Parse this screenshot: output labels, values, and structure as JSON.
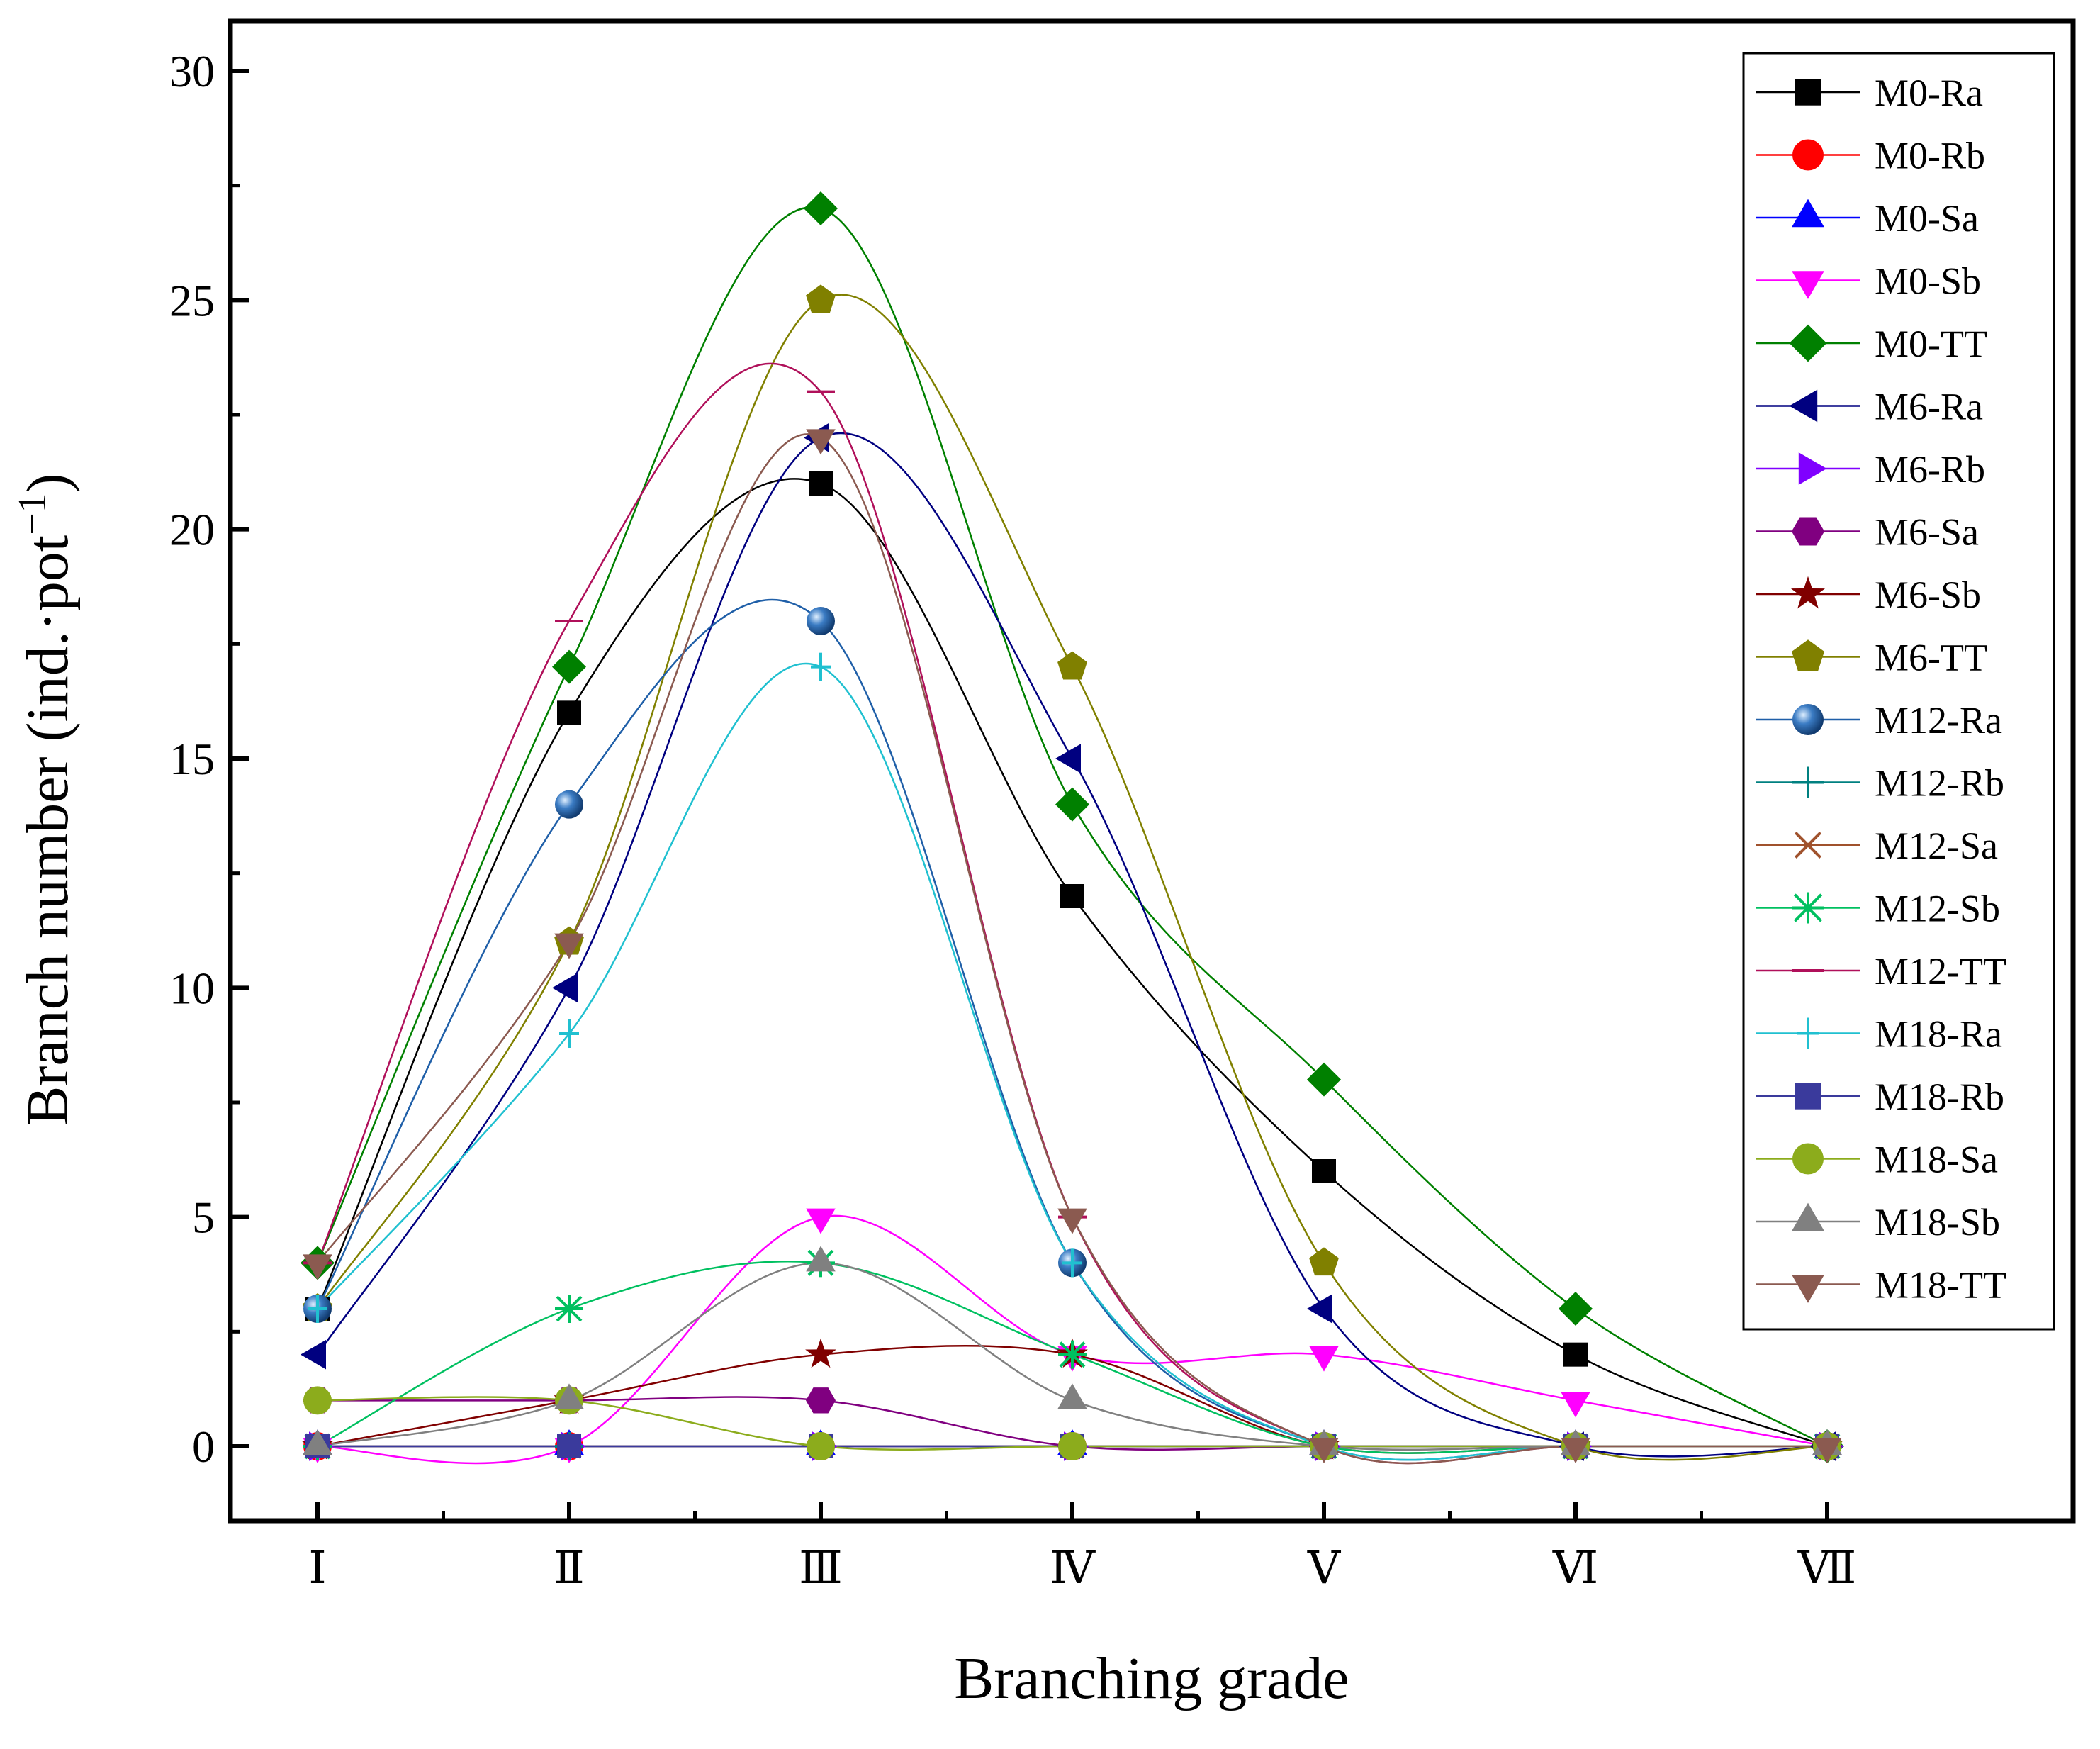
{
  "chart_data": {
    "type": "line",
    "xlabel": "Branching grade",
    "ylabel": "Branch number (ind.·pot",
    "ylabel_superscript": "−1",
    "ylabel_close": ")",
    "categories": [
      "Ⅰ",
      "Ⅱ",
      "Ⅲ",
      "Ⅳ",
      "Ⅴ",
      "Ⅵ",
      "Ⅶ"
    ],
    "ylim": [
      0,
      30
    ],
    "yticks": [
      "0",
      "5",
      "10",
      "15",
      "20",
      "25",
      "30"
    ],
    "legend_position": "top-right",
    "series": [
      {
        "name": "M0-Ra",
        "color": "#000000",
        "marker": "square",
        "values": [
          3,
          16,
          21,
          12,
          6,
          2,
          0
        ]
      },
      {
        "name": "M0-Rb",
        "color": "#ff0000",
        "marker": "circle",
        "values": [
          0,
          0,
          0,
          0,
          0,
          0,
          0
        ]
      },
      {
        "name": "M0-Sa",
        "color": "#0000ff",
        "marker": "triangle-up",
        "values": [
          0,
          0,
          0,
          0,
          0,
          0,
          0
        ]
      },
      {
        "name": "M0-Sb",
        "color": "#ff00ff",
        "marker": "triangle-down",
        "values": [
          0,
          0,
          5,
          2,
          2,
          1,
          0
        ]
      },
      {
        "name": "M0-TT",
        "color": "#008000",
        "marker": "diamond",
        "values": [
          4,
          17,
          27,
          14,
          8,
          3,
          0
        ]
      },
      {
        "name": "M6-Ra",
        "color": "#000080",
        "marker": "triangle-left",
        "values": [
          2,
          10,
          22,
          15,
          3,
          0,
          0
        ]
      },
      {
        "name": "M6-Rb",
        "color": "#8000ff",
        "marker": "triangle-right",
        "values": [
          0,
          0,
          0,
          0,
          0,
          0,
          0
        ]
      },
      {
        "name": "M6-Sa",
        "color": "#800080",
        "marker": "hexagon",
        "values": [
          1,
          1,
          1,
          0,
          0,
          0,
          0
        ]
      },
      {
        "name": "M6-Sb",
        "color": "#800000",
        "marker": "star",
        "values": [
          0,
          1,
          2,
          2,
          0,
          0,
          0
        ]
      },
      {
        "name": "M6-TT",
        "color": "#808000",
        "marker": "pentagon",
        "values": [
          3,
          11,
          25,
          17,
          4,
          0,
          0
        ]
      },
      {
        "name": "M12-Ra",
        "color": "#1f5fa8",
        "marker": "sphere",
        "values": [
          3,
          14,
          18,
          4,
          0,
          0,
          0
        ]
      },
      {
        "name": "M12-Rb",
        "color": "#008080",
        "marker": "plus",
        "values": [
          0,
          0,
          0,
          0,
          0,
          0,
          0
        ]
      },
      {
        "name": "M12-Sa",
        "color": "#a0522d",
        "marker": "x",
        "values": [
          0,
          0,
          0,
          0,
          0,
          0,
          0
        ]
      },
      {
        "name": "M12-Sb",
        "color": "#00c060",
        "marker": "asterisk",
        "values": [
          0,
          3,
          4,
          2,
          0,
          0,
          0
        ]
      },
      {
        "name": "M12-TT",
        "color": "#b0105a",
        "marker": "dash",
        "values": [
          4,
          18,
          23,
          5,
          0,
          0,
          0
        ]
      },
      {
        "name": "M18-Ra",
        "color": "#20c0d0",
        "marker": "vline",
        "values": [
          3,
          9,
          17,
          4,
          0,
          0,
          0
        ]
      },
      {
        "name": "M18-Rb",
        "color": "#3a3a9c",
        "marker": "square",
        "values": [
          0,
          0,
          0,
          0,
          0,
          0,
          0
        ]
      },
      {
        "name": "M18-Sa",
        "color": "#8cac1c",
        "marker": "circle",
        "values": [
          1,
          1,
          0,
          0,
          0,
          0,
          0
        ]
      },
      {
        "name": "M18-Sb",
        "color": "#808080",
        "marker": "triangle-up",
        "values": [
          0,
          1,
          4,
          1,
          0,
          0,
          0
        ]
      },
      {
        "name": "M18-TT",
        "color": "#8b5a50",
        "marker": "triangle-down",
        "values": [
          4,
          11,
          22,
          5,
          0,
          0,
          0
        ]
      }
    ]
  }
}
